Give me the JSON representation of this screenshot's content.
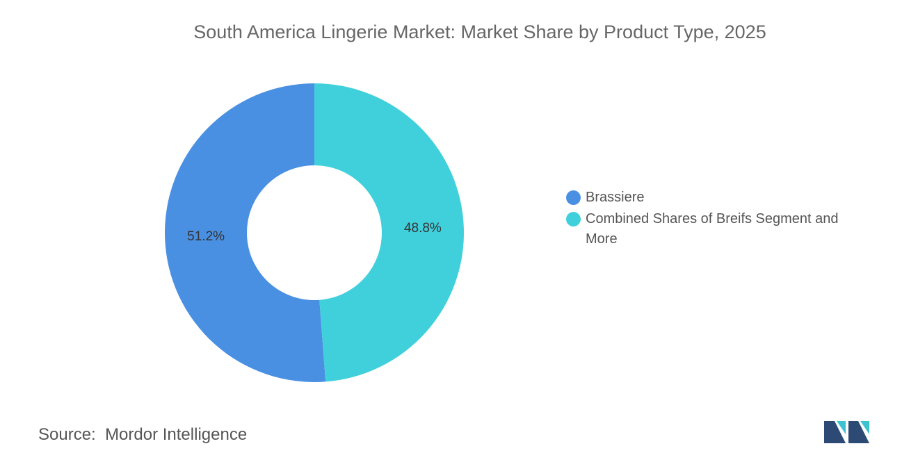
{
  "chart_data": {
    "type": "donut",
    "title": "South America Lingerie Market: Market Share by Product Type, 2025",
    "categories": [
      "Brassiere",
      "Combined Shares of Breifs Segment and More"
    ],
    "values": [
      51.2,
      48.8
    ],
    "value_labels": [
      "51.2%",
      "48.8%"
    ],
    "colors": [
      "#4a90e2",
      "#40d0dc"
    ],
    "legend": "right"
  },
  "footer": {
    "source_label": "Source:",
    "source": "Mordor Intelligence"
  }
}
